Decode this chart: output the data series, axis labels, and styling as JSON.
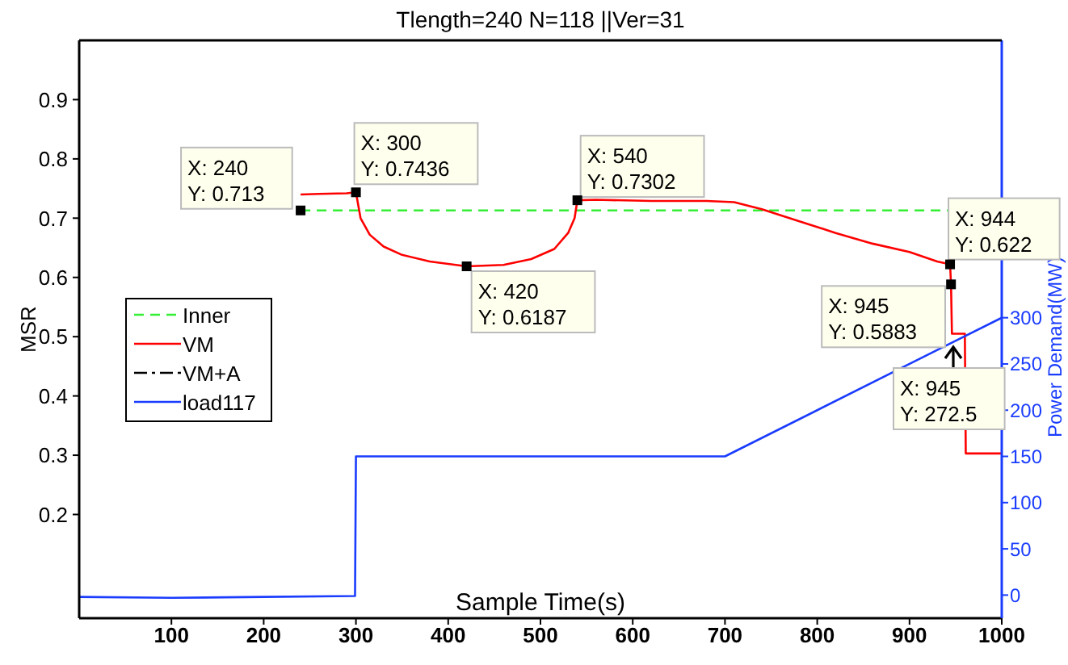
{
  "chart_data": {
    "type": "line",
    "title": "Tlength=240  N=118 ||Ver=31",
    "xlabel": "Sample Time(s)",
    "ylabel": "MSR",
    "y2label": "Power Demand(MW)",
    "xlim": [
      0,
      1000
    ],
    "xticks": [
      100,
      200,
      300,
      400,
      500,
      600,
      700,
      800,
      900,
      1000
    ],
    "ylim": [
      0.025,
      1
    ],
    "yticks": [
      0.2,
      0.3,
      0.4,
      0.5,
      0.6,
      0.7,
      0.8,
      0.9
    ],
    "y2lim": [
      -25,
      600
    ],
    "y2ticks": [
      0,
      50,
      100,
      150,
      200,
      250,
      300
    ],
    "grid": false,
    "legend": "left",
    "series": [
      {
        "name": "Inner",
        "color": "#33ee33",
        "line_style": "dashed",
        "x": [
          240,
          944
        ],
        "values": [
          0.713,
          0.713
        ]
      },
      {
        "name": "VM",
        "color": "#ff0000",
        "line_style": "solid",
        "x": [
          240,
          260,
          290,
          300,
          305,
          315,
          330,
          350,
          380,
          420,
          460,
          490,
          515,
          530,
          537,
          540,
          560,
          620,
          680,
          710,
          740,
          780,
          820,
          860,
          900,
          930,
          944,
          945,
          946,
          960,
          961,
          1000
        ],
        "values": [
          0.74,
          0.741,
          0.742,
          0.7436,
          0.7,
          0.672,
          0.652,
          0.638,
          0.627,
          0.6187,
          0.621,
          0.631,
          0.648,
          0.675,
          0.7,
          0.7302,
          0.731,
          0.729,
          0.729,
          0.727,
          0.715,
          0.695,
          0.675,
          0.657,
          0.643,
          0.627,
          0.622,
          0.5883,
          0.505,
          0.505,
          0.303,
          0.303
        ]
      },
      {
        "name": "VM+A",
        "color": "#000000",
        "line_style": "dashdot"
      },
      {
        "name": "load117",
        "color": "#1a3cff",
        "line_style": "solid",
        "axis": "y2",
        "x": [
          0,
          100,
          200,
          299,
          300,
          400,
          500,
          600,
          700,
          800,
          900,
          945,
          1000
        ],
        "values": [
          -2,
          -3,
          -2,
          -1,
          150,
          150,
          150,
          150,
          150,
          200,
          250,
          272.5,
          300
        ]
      }
    ],
    "annotations": [
      {
        "text": "X: 240\nY: 0.713",
        "x": 240,
        "y": 0.713
      },
      {
        "text": "X: 300\nY: 0.7436",
        "x": 300,
        "y": 0.7436
      },
      {
        "text": "X: 420\nY: 0.6187",
        "x": 420,
        "y": 0.6187
      },
      {
        "text": "X: 540\nY: 0.7302",
        "x": 540,
        "y": 0.7302
      },
      {
        "text": "X: 944\nY: 0.622",
        "x": 944,
        "y": 0.622
      },
      {
        "text": "X: 945\nY: 0.5883",
        "x": 945,
        "y": 0.5883
      },
      "X: 945\nY: 272.5"
    ]
  }
}
